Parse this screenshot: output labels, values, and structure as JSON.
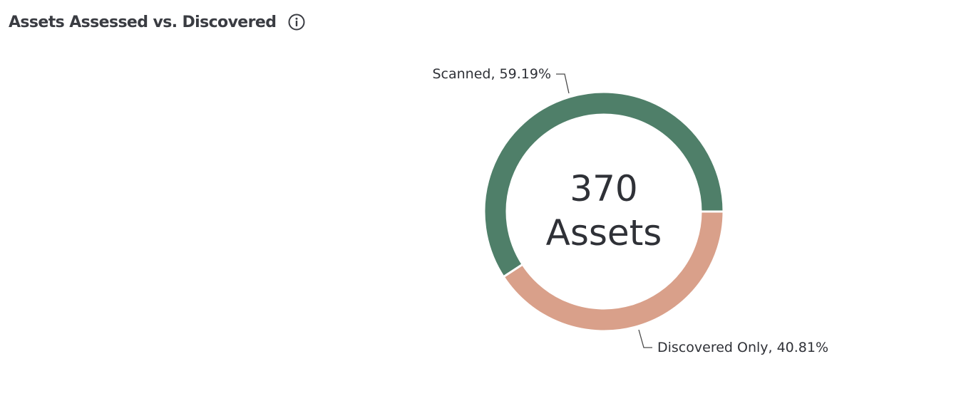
{
  "header": {
    "title": "Assets Assessed vs. Discovered",
    "info_icon": "info-circle-icon"
  },
  "chart_data": {
    "type": "pie",
    "variant": "donut",
    "title": "Assets Assessed vs. Discovered",
    "center_value": "370",
    "center_label": "Assets",
    "slices": [
      {
        "label": "Scanned",
        "value": 59.19,
        "display": "Scanned, 59.19%",
        "color": "#4f7f69"
      },
      {
        "label": "Discovered Only",
        "value": 40.81,
        "display": "Discovered Only, 40.81%",
        "color": "#d9a08a"
      }
    ]
  },
  "colors": {
    "title": "#3a3c42",
    "text": "#2f3137",
    "leader_line": "#4a4a4a"
  }
}
